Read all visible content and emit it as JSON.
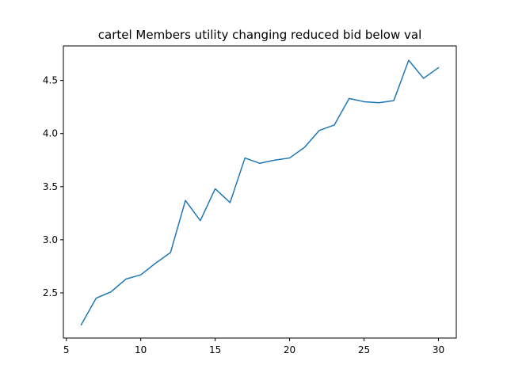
{
  "chart_data": {
    "type": "line",
    "title": "cartel Members utility changing reduced bid below val",
    "xlabel": "",
    "ylabel": "",
    "xlim": [
      4.8,
      31.2
    ],
    "ylim": [
      2.075,
      4.825
    ],
    "x_ticks": [
      5,
      10,
      15,
      20,
      25,
      30
    ],
    "y_ticks": [
      2.5,
      3.0,
      3.5,
      4.0,
      4.5
    ],
    "x_tick_labels": [
      "5",
      "10",
      "15",
      "20",
      "25",
      "30"
    ],
    "y_tick_labels": [
      "2.5",
      "3.0",
      "3.5",
      "4.0",
      "4.5"
    ],
    "grid": false,
    "series": [
      {
        "color": "#1f77b4",
        "x": [
          6,
          7,
          8,
          9,
          10,
          11,
          12,
          13,
          14,
          15,
          16,
          17,
          18,
          19,
          20,
          21,
          22,
          23,
          24,
          25,
          26,
          27,
          28,
          29,
          30
        ],
        "y": [
          2.2,
          2.45,
          2.51,
          2.63,
          2.67,
          2.78,
          2.88,
          3.37,
          3.18,
          3.48,
          3.35,
          3.77,
          3.72,
          3.75,
          3.77,
          3.87,
          4.03,
          4.08,
          4.33,
          4.3,
          4.29,
          4.31,
          4.69,
          4.52,
          4.62
        ]
      }
    ]
  }
}
